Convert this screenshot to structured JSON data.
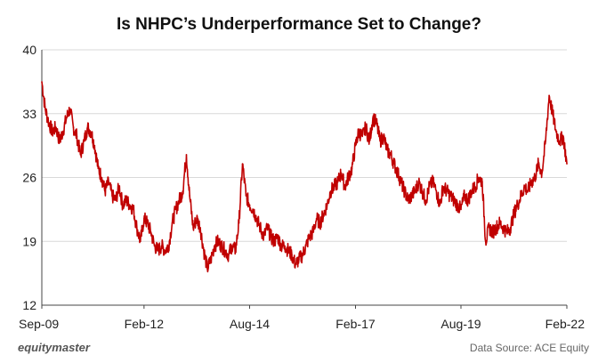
{
  "chart_data": {
    "type": "line",
    "title": "Is NHPC’s Underperformance  Set to Change?",
    "xlabel": "",
    "ylabel": "",
    "x_range": [
      "2009-09-01",
      "2022-02-01"
    ],
    "ylim": [
      12,
      40
    ],
    "y_ticks": [
      12,
      19,
      26,
      33,
      40
    ],
    "x_ticks": [
      {
        "label": "Sep-09",
        "date": "2009-09-01"
      },
      {
        "label": "Feb-12",
        "date": "2012-02-01"
      },
      {
        "label": "Aug-14",
        "date": "2014-08-01"
      },
      {
        "label": "Feb-17",
        "date": "2017-02-01"
      },
      {
        "label": "Aug-19",
        "date": "2019-08-01"
      },
      {
        "label": "Feb-22",
        "date": "2022-02-01"
      }
    ],
    "grid": "horizontal",
    "legend": "none",
    "line_color": "#c00000",
    "series": [
      {
        "values": [
          [
            "2009-09-01",
            36.5
          ],
          [
            "2009-10-01",
            33.5
          ],
          [
            "2009-11-01",
            32.0
          ],
          [
            "2009-12-01",
            31.0
          ],
          [
            "2010-01-01",
            31.5
          ],
          [
            "2010-02-01",
            30.0
          ],
          [
            "2010-03-01",
            31.0
          ],
          [
            "2010-04-01",
            32.5
          ],
          [
            "2010-05-01",
            33.5
          ],
          [
            "2010-06-01",
            31.5
          ],
          [
            "2010-07-01",
            30.5
          ],
          [
            "2010-08-01",
            28.5
          ],
          [
            "2010-09-01",
            30.0
          ],
          [
            "2010-10-01",
            31.5
          ],
          [
            "2010-11-01",
            31.0
          ],
          [
            "2010-12-01",
            29.5
          ],
          [
            "2011-01-01",
            27.0
          ],
          [
            "2011-02-01",
            26.0
          ],
          [
            "2011-03-01",
            24.5
          ],
          [
            "2011-04-01",
            25.5
          ],
          [
            "2011-05-01",
            24.0
          ],
          [
            "2011-06-01",
            23.5
          ],
          [
            "2011-07-01",
            25.0
          ],
          [
            "2011-08-01",
            23.0
          ],
          [
            "2011-09-01",
            23.5
          ],
          [
            "2011-10-01",
            23.0
          ],
          [
            "2011-11-01",
            22.5
          ],
          [
            "2011-12-01",
            20.5
          ],
          [
            "2012-01-01",
            19.0
          ],
          [
            "2012-02-01",
            21.5
          ],
          [
            "2012-03-01",
            21.0
          ],
          [
            "2012-04-01",
            20.0
          ],
          [
            "2012-05-01",
            18.5
          ],
          [
            "2012-06-01",
            18.0
          ],
          [
            "2012-07-01",
            18.5
          ],
          [
            "2012-08-01",
            18.0
          ],
          [
            "2012-09-01",
            18.5
          ],
          [
            "2012-10-01",
            21.0
          ],
          [
            "2012-11-01",
            22.5
          ],
          [
            "2012-12-01",
            23.5
          ],
          [
            "2013-01-01",
            24.5
          ],
          [
            "2013-02-01",
            28.5
          ],
          [
            "2013-03-01",
            24.0
          ],
          [
            "2013-04-01",
            20.5
          ],
          [
            "2013-05-01",
            21.5
          ],
          [
            "2013-06-01",
            20.5
          ],
          [
            "2013-07-01",
            18.0
          ],
          [
            "2013-08-01",
            16.0
          ],
          [
            "2013-09-01",
            17.0
          ],
          [
            "2013-10-01",
            18.5
          ],
          [
            "2013-11-01",
            19.0
          ],
          [
            "2013-12-01",
            18.5
          ],
          [
            "2014-01-01",
            18.0
          ],
          [
            "2014-02-01",
            17.5
          ],
          [
            "2014-03-01",
            18.5
          ],
          [
            "2014-04-01",
            18.0
          ],
          [
            "2014-05-01",
            21.0
          ],
          [
            "2014-06-01",
            27.5
          ],
          [
            "2014-07-01",
            24.0
          ],
          [
            "2014-08-01",
            23.0
          ],
          [
            "2014-09-01",
            22.5
          ],
          [
            "2014-10-01",
            21.5
          ],
          [
            "2014-11-01",
            20.5
          ],
          [
            "2014-12-01",
            19.5
          ],
          [
            "2015-01-01",
            20.5
          ],
          [
            "2015-02-01",
            19.5
          ],
          [
            "2015-03-01",
            19.0
          ],
          [
            "2015-04-01",
            19.5
          ],
          [
            "2015-05-01",
            18.5
          ],
          [
            "2015-06-01",
            18.5
          ],
          [
            "2015-07-01",
            18.0
          ],
          [
            "2015-08-01",
            17.5
          ],
          [
            "2015-09-01",
            16.5
          ],
          [
            "2015-10-01",
            17.0
          ],
          [
            "2015-11-01",
            17.5
          ],
          [
            "2015-12-01",
            18.5
          ],
          [
            "2016-01-01",
            19.5
          ],
          [
            "2016-02-01",
            20.0
          ],
          [
            "2016-03-01",
            21.5
          ],
          [
            "2016-04-01",
            21.0
          ],
          [
            "2016-05-01",
            22.0
          ],
          [
            "2016-06-01",
            23.0
          ],
          [
            "2016-07-01",
            24.5
          ],
          [
            "2016-08-01",
            25.0
          ],
          [
            "2016-09-01",
            25.5
          ],
          [
            "2016-10-01",
            26.5
          ],
          [
            "2016-11-01",
            25.0
          ],
          [
            "2016-12-01",
            26.0
          ],
          [
            "2017-01-01",
            27.0
          ],
          [
            "2017-02-01",
            29.5
          ],
          [
            "2017-03-01",
            31.0
          ],
          [
            "2017-04-01",
            30.5
          ],
          [
            "2017-05-01",
            31.5
          ],
          [
            "2017-06-01",
            30.0
          ],
          [
            "2017-07-01",
            32.5
          ],
          [
            "2017-08-01",
            32.0
          ],
          [
            "2017-09-01",
            30.0
          ],
          [
            "2017-10-01",
            30.5
          ],
          [
            "2017-11-01",
            29.0
          ],
          [
            "2017-12-01",
            28.5
          ],
          [
            "2018-01-01",
            27.5
          ],
          [
            "2018-02-01",
            26.5
          ],
          [
            "2018-03-01",
            25.5
          ],
          [
            "2018-04-01",
            24.5
          ],
          [
            "2018-05-01",
            23.5
          ],
          [
            "2018-06-01",
            24.0
          ],
          [
            "2018-07-01",
            24.5
          ],
          [
            "2018-08-01",
            25.5
          ],
          [
            "2018-09-01",
            24.5
          ],
          [
            "2018-10-01",
            23.5
          ],
          [
            "2018-11-01",
            25.0
          ],
          [
            "2018-12-01",
            25.5
          ],
          [
            "2019-01-01",
            24.5
          ],
          [
            "2019-02-01",
            23.0
          ],
          [
            "2019-03-01",
            25.0
          ],
          [
            "2019-04-01",
            24.5
          ],
          [
            "2019-05-01",
            24.0
          ],
          [
            "2019-06-01",
            23.5
          ],
          [
            "2019-07-01",
            23.0
          ],
          [
            "2019-08-01",
            22.5
          ],
          [
            "2019-09-01",
            24.0
          ],
          [
            "2019-10-01",
            23.5
          ],
          [
            "2019-11-01",
            24.5
          ],
          [
            "2019-12-01",
            25.0
          ],
          [
            "2020-01-01",
            26.0
          ],
          [
            "2020-02-01",
            25.5
          ],
          [
            "2020-03-01",
            19.0
          ],
          [
            "2020-04-01",
            20.5
          ],
          [
            "2020-05-01",
            20.0
          ],
          [
            "2020-06-01",
            20.5
          ],
          [
            "2020-07-01",
            21.0
          ],
          [
            "2020-08-01",
            20.5
          ],
          [
            "2020-09-01",
            20.0
          ],
          [
            "2020-10-01",
            20.5
          ],
          [
            "2020-11-01",
            22.0
          ],
          [
            "2020-12-01",
            23.0
          ],
          [
            "2021-01-01",
            24.0
          ],
          [
            "2021-02-01",
            25.0
          ],
          [
            "2021-03-01",
            24.5
          ],
          [
            "2021-04-01",
            25.5
          ],
          [
            "2021-05-01",
            26.0
          ],
          [
            "2021-06-01",
            27.5
          ],
          [
            "2021-07-01",
            26.5
          ],
          [
            "2021-08-01",
            30.0
          ],
          [
            "2021-09-01",
            35.0
          ],
          [
            "2021-10-01",
            33.0
          ],
          [
            "2021-11-01",
            31.0
          ],
          [
            "2021-12-01",
            30.0
          ],
          [
            "2022-01-01",
            30.5
          ],
          [
            "2022-02-01",
            27.5
          ]
        ]
      }
    ]
  },
  "footer": {
    "brand": "equitymaster",
    "source": "Data Source: ACE Equity"
  }
}
